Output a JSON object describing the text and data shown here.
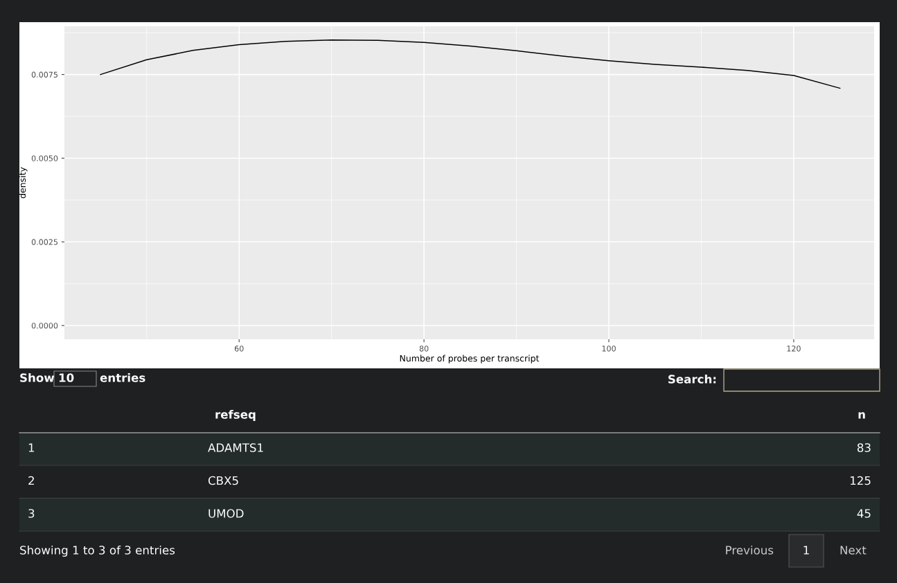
{
  "chart_data": [
    {
      "type": "line",
      "xlabel": "Number of probes per transcript",
      "ylabel": "density",
      "x": [
        45,
        50,
        55,
        60,
        65,
        70,
        75,
        80,
        85,
        90,
        95,
        100,
        105,
        110,
        115,
        120,
        125
      ],
      "series": [
        {
          "color": "#000000",
          "values": [
            0.0075,
            0.00794,
            0.00822,
            0.00839,
            0.00849,
            0.00853,
            0.00852,
            0.00846,
            0.00835,
            0.00821,
            0.00805,
            0.00791,
            0.0078,
            0.00772,
            0.00762,
            0.00747,
            0.00709
          ]
        }
      ],
      "xlim": [
        41.1,
        128.7
      ],
      "ylim": [
        -0.00041,
        0.00894
      ],
      "xticks": [
        60,
        80,
        100,
        120
      ],
      "yticks": [
        {
          "value": 0,
          "label": "0.0000"
        },
        {
          "value": 0.0025,
          "label": "0.0025"
        },
        {
          "value": 0.005,
          "label": "0.0050"
        },
        {
          "value": 0.0075,
          "label": "0.0075"
        }
      ],
      "grid": true
    },
    {
      "type": "other",
      "annotations": [
        "Show",
        "10",
        "entries",
        "Search:",
        "refseq",
        "n",
        "1",
        "ADAMTS1",
        "83",
        "2",
        "CBX5",
        "125",
        "3",
        "UMOD",
        "45",
        "Showing 1 to 3 of 3 entries",
        "Previous",
        "1",
        "Next"
      ]
    }
  ]
}
